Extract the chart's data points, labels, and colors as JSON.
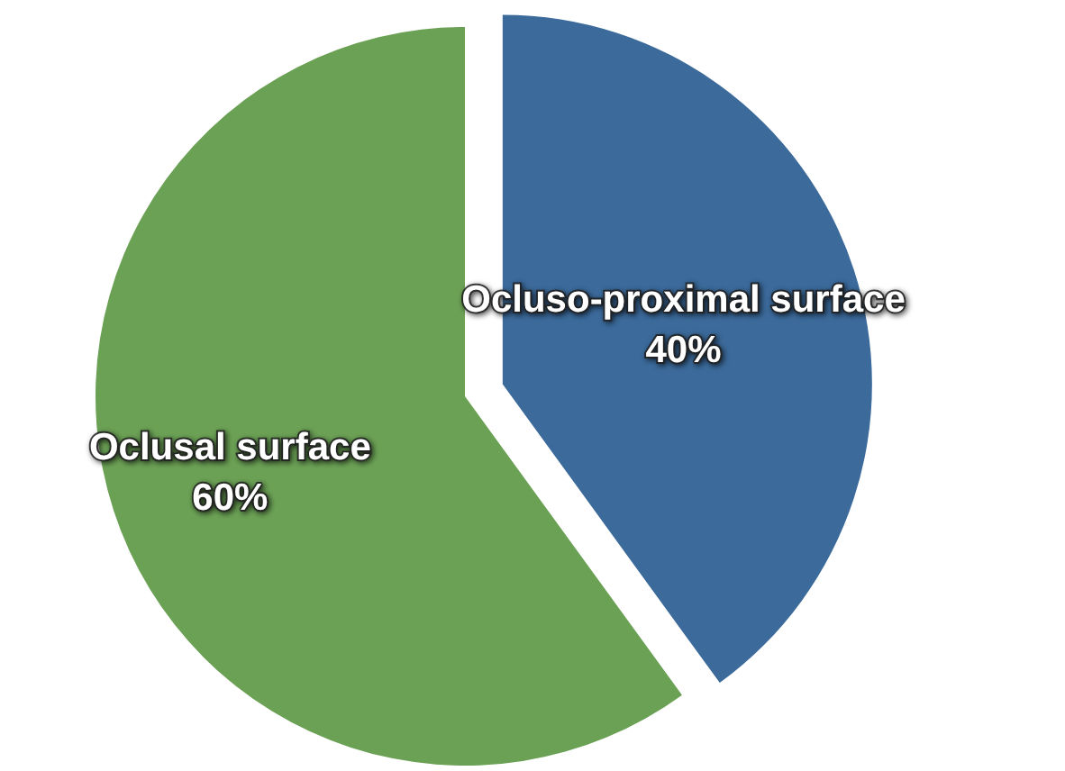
{
  "chart_data": {
    "type": "pie",
    "categories": [
      "Ocluso-proximal surface",
      "Oclusal surface"
    ],
    "values": [
      40,
      60
    ],
    "value_labels": [
      "40%",
      "60%"
    ],
    "colors": [
      "#3b6a9b",
      "#6ba155"
    ],
    "legend": false
  }
}
